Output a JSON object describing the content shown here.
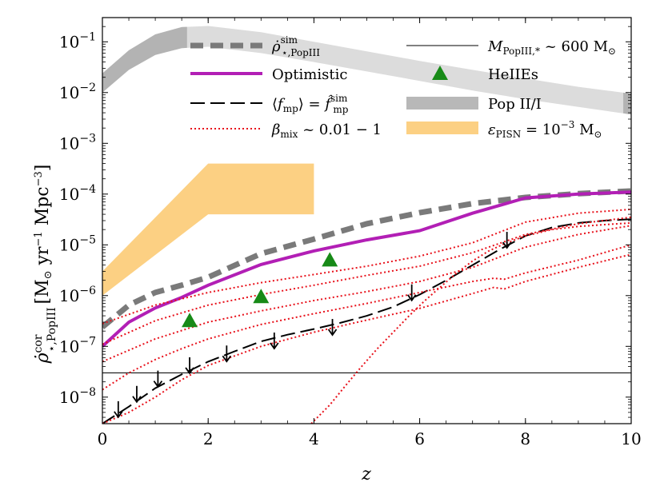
{
  "chart_data": {
    "type": "line",
    "xlabel": "z",
    "ylabel": "ρ̇cor⋆,PopIII [M⊙ yr⁻¹ Mpc⁻³]",
    "xlim": [
      0,
      10
    ],
    "ylim": [
      3e-09,
      0.3
    ],
    "y_scale": "log",
    "grid": false,
    "x_ticks": [
      {
        "value": 0,
        "label": "0"
      },
      {
        "value": 2,
        "label": "2"
      },
      {
        "value": 4,
        "label": "4"
      },
      {
        "value": 6,
        "label": "6"
      },
      {
        "value": 8,
        "label": "8"
      },
      {
        "value": 10,
        "label": "10"
      }
    ],
    "y_ticks": [
      {
        "exp": -1,
        "base": "10",
        "sup": "−1"
      },
      {
        "exp": -2,
        "base": "10",
        "sup": "−2"
      },
      {
        "exp": -3,
        "base": "10",
        "sup": "−3"
      },
      {
        "exp": -4,
        "base": "10",
        "sup": "−4"
      },
      {
        "exp": -5,
        "base": "10",
        "sup": "−5"
      },
      {
        "exp": -6,
        "base": "10",
        "sup": "−6"
      },
      {
        "exp": -7,
        "base": "10",
        "sup": "−7"
      },
      {
        "exp": -8,
        "base": "10",
        "sup": "−8"
      }
    ],
    "legend": [
      {
        "id": "sim",
        "label": "ρ̇sim⋆,PopIII",
        "style": "thick-dashed-gray",
        "color": "#7a7a7a"
      },
      {
        "id": "optimistic",
        "label": "Optimistic",
        "style": "solid-magenta",
        "color": "#b21fb5"
      },
      {
        "id": "fmp",
        "label": "⟨fmp⟩ = f̂simmp",
        "style": "long-dashed-black",
        "color": "#000000"
      },
      {
        "id": "beta",
        "label": "βmix ~ 0.01 − 1",
        "style": "dotted-red",
        "color": "#e8111b"
      },
      {
        "id": "mpop",
        "label": "MPopIII,* ~ 600 M⊙",
        "style": "thin-solid-black",
        "color": "#000000"
      },
      {
        "id": "heiies",
        "label": "HeIIEs",
        "style": "green-triangle",
        "color": "#178a17"
      },
      {
        "id": "pop2",
        "label": "Pop II/I",
        "style": "gray-band",
        "color": "#b8b8b8"
      },
      {
        "id": "pisn",
        "label": "εPISN = 10⁻³ M⊙",
        "style": "orange-band",
        "color": "#fcd083"
      }
    ],
    "series": [
      {
        "id": "sim",
        "name": "ρ̇sim⋆,PopIII",
        "x": [
          0,
          0.5,
          1,
          1.5,
          2,
          3,
          4,
          5,
          6,
          7,
          8,
          9,
          10
        ],
        "y": [
          2.4e-07,
          6.5e-07,
          1.15e-06,
          1.6e-06,
          2.3e-06,
          6.7e-06,
          1.3e-05,
          2.6e-05,
          4.3e-05,
          6.5e-05,
          8.6e-05,
          0.000102,
          0.000115
        ]
      },
      {
        "id": "optimistic",
        "name": "Optimistic",
        "x": [
          0,
          0.5,
          1,
          1.5,
          2,
          3,
          4,
          5,
          6,
          7,
          8,
          9,
          10
        ],
        "y": [
          1e-07,
          3e-07,
          5.7e-07,
          9.2e-07,
          1.6e-06,
          4.1e-06,
          7.6e-06,
          1.25e-05,
          1.9e-05,
          4.2e-05,
          8.4e-05,
          0.0001,
          0.00011
        ]
      },
      {
        "id": "fmp",
        "name": "⟨fmp⟩ = f̂simmp",
        "x": [
          0,
          0.5,
          1,
          1.5,
          2,
          2.5,
          3,
          3.5,
          4,
          4.5,
          5,
          5.5,
          6,
          6.5,
          7,
          7.5,
          8,
          8.5,
          9,
          9.5,
          10
        ],
        "y": [
          3e-09,
          6.5e-09,
          1.5e-08,
          2.8e-08,
          5e-08,
          8e-08,
          1.25e-07,
          1.7e-07,
          2.2e-07,
          2.9e-07,
          4e-07,
          6e-07,
          1.05e-06,
          2e-06,
          4e-06,
          8e-06,
          1.5e-05,
          2.2e-05,
          2.7e-05,
          3e-05,
          3.2e-05
        ]
      },
      {
        "id": "beta1",
        "name": "βmix ~ 0.01 − 1",
        "x": [
          0,
          1,
          2,
          3,
          4,
          5,
          6,
          7,
          8,
          9,
          10
        ],
        "y": [
          2.8e-07,
          6.5e-07,
          1.15e-06,
          1.8e-06,
          2.6e-06,
          3.8e-06,
          6e-06,
          1.1e-05,
          2.8e-05,
          4.2e-05,
          5e-05
        ]
      },
      {
        "id": "beta2",
        "name": "βmix ~ 0.01 − 1",
        "x": [
          0,
          1,
          2,
          3,
          4,
          5,
          6,
          7,
          8,
          9,
          10
        ],
        "y": [
          1.1e-07,
          3.2e-07,
          6.5e-07,
          1.05e-06,
          1.6e-06,
          2.5e-06,
          3.8e-06,
          7e-06,
          1.6e-05,
          2.6e-05,
          3.5e-05
        ]
      },
      {
        "id": "beta3",
        "name": "βmix ~ 0.01 − 1",
        "x": [
          0,
          1,
          2,
          3,
          4,
          5,
          6,
          7,
          8,
          9,
          10
        ],
        "y": [
          5e-08,
          1.4e-07,
          3e-07,
          5e-07,
          8e-07,
          1.2e-06,
          1.9e-06,
          3.6e-06,
          9e-06,
          1.6e-05,
          2.4e-05
        ]
      },
      {
        "id": "beta4",
        "name": "βmix ~ 0.01 − 1",
        "x": [
          0,
          0.5,
          1,
          1.5,
          2,
          3,
          4,
          5,
          6,
          7,
          7.4,
          7.6,
          8,
          9,
          10
        ],
        "y": [
          1.4e-08,
          3e-08,
          5.5e-08,
          9e-08,
          1.4e-07,
          2.7e-07,
          4.4e-07,
          7e-07,
          1.15e-06,
          1.9e-06,
          2.2e-06,
          2.1e-06,
          2.8e-06,
          5e-06,
          1e-05
        ]
      },
      {
        "id": "beta5",
        "name": "βmix ~ 0.01 − 1",
        "x": [
          0,
          0.5,
          1,
          1.5,
          2,
          3,
          4,
          5,
          6,
          7,
          7.4,
          7.6,
          8,
          9,
          10
        ],
        "y": [
          3e-09,
          5e-09,
          1e-08,
          2.2e-08,
          4.2e-08,
          1e-07,
          1.9e-07,
          3.3e-07,
          5.6e-07,
          1.1e-06,
          1.45e-06,
          1.35e-06,
          1.9e-06,
          3.6e-06,
          6.5e-06
        ]
      },
      {
        "id": "beta6",
        "name": "βmix ~ 0.01 − 1",
        "x": [
          3.95,
          4.3,
          4.6,
          4.9,
          5.2,
          5.5,
          5.8,
          6.1,
          6.4,
          6.7,
          7.0,
          7.3,
          7.6,
          8.0,
          8.5,
          9.0,
          9.5,
          10
        ],
        "y": [
          3e-09,
          7e-09,
          1.7e-08,
          4e-08,
          9e-08,
          1.9e-07,
          4e-07,
          8e-07,
          1.5e-06,
          2.8e-06,
          4.8e-06,
          7.5e-06,
          1.05e-05,
          1.5e-05,
          2e-05,
          2.3e-05,
          2.5e-05,
          2.7e-05
        ]
      }
    ],
    "mpop_line_y": 3e-08,
    "upper_limits": {
      "x": [
        0.3,
        0.65,
        1.05,
        1.65,
        2.35,
        3.25,
        4.35,
        5.85,
        7.65
      ],
      "y": [
        6e-09,
        1.2e-08,
        2.4e-08,
        4.4e-08,
        7.5e-08,
        1.35e-07,
        2.5e-07,
        1.2e-06,
        1.3e-05
      ]
    },
    "heiies": {
      "x": [
        1.65,
        3.0,
        4.3
      ],
      "y": [
        3.2e-07,
        9.5e-07,
        5e-06
      ]
    },
    "pop2_band": {
      "x": [
        0,
        0.5,
        1,
        1.5,
        2,
        3,
        4,
        5,
        6,
        7,
        8,
        9,
        10
      ],
      "low": [
        0.01,
        0.028,
        0.055,
        0.075,
        0.08,
        0.06,
        0.04,
        0.026,
        0.017,
        0.011,
        0.0074,
        0.0052,
        0.0037
      ],
      "high": [
        0.024,
        0.068,
        0.14,
        0.195,
        0.205,
        0.155,
        0.1,
        0.065,
        0.042,
        0.028,
        0.019,
        0.013,
        0.0095
      ],
      "dark_ranges": [
        [
          0,
          1.6
        ],
        [
          9.85,
          10
        ]
      ]
    },
    "pisn_band": {
      "x": [
        0,
        2,
        2,
        4
      ],
      "low": [
        1e-06,
        4e-05,
        4e-05,
        4e-05
      ],
      "high": [
        3e-06,
        0.0004,
        0.0004,
        0.0004
      ]
    }
  }
}
